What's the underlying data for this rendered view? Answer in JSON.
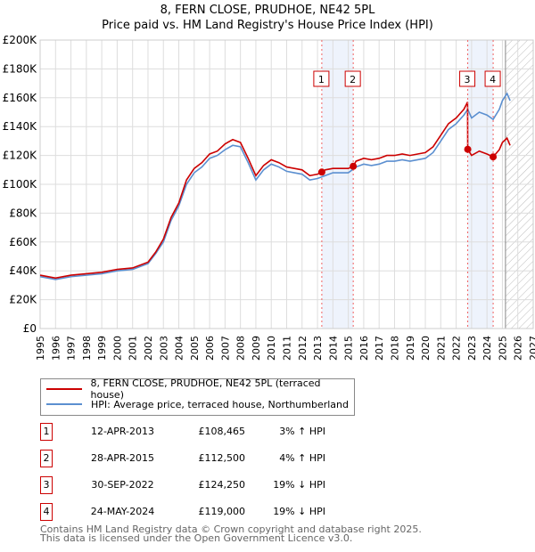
{
  "chart_data": {
    "type": "line",
    "title": "8, FERN CLOSE, PRUDHOE, NE42 5PL",
    "subtitle": "Price paid vs. HM Land Registry's House Price Index (HPI)",
    "xlim": [
      1995,
      2027
    ],
    "ylim": [
      0,
      200000
    ],
    "x_ticks": [
      "1995",
      "1996",
      "1997",
      "1998",
      "1999",
      "2000",
      "2001",
      "2002",
      "2003",
      "2004",
      "2005",
      "2006",
      "2007",
      "2008",
      "2009",
      "2010",
      "2011",
      "2012",
      "2013",
      "2014",
      "2015",
      "2016",
      "2017",
      "2018",
      "2019",
      "2020",
      "2021",
      "2022",
      "2023",
      "2024",
      "2025",
      "2026",
      "2027"
    ],
    "y_ticks": [
      {
        "v": 0,
        "l": "£0"
      },
      {
        "v": 20000,
        "l": "£20K"
      },
      {
        "v": 40000,
        "l": "£40K"
      },
      {
        "v": 60000,
        "l": "£60K"
      },
      {
        "v": 80000,
        "l": "£80K"
      },
      {
        "v": 100000,
        "l": "£100K"
      },
      {
        "v": 120000,
        "l": "£120K"
      },
      {
        "v": 140000,
        "l": "£140K"
      },
      {
        "v": 160000,
        "l": "£160K"
      },
      {
        "v": 180000,
        "l": "£180K"
      },
      {
        "v": 200000,
        "l": "£200K"
      }
    ],
    "grid": true,
    "forecast_start": 2025.2,
    "series": [
      {
        "name": "8, FERN CLOSE, PRUDHOE, NE42 5PL (terraced house)",
        "color": "#cc0000",
        "x": [
          1995,
          1996,
          1997,
          1998,
          1999,
          2000,
          2001,
          2002,
          2002.5,
          2003,
          2003.5,
          2004,
          2004.5,
          2005,
          2005.5,
          2006,
          2006.5,
          2007,
          2007.5,
          2008,
          2008.5,
          2009,
          2009.5,
          2010,
          2010.5,
          2011,
          2011.5,
          2012,
          2012.5,
          2013,
          2013.28,
          2013.5,
          2014,
          2014.5,
          2015,
          2015.32,
          2015.5,
          2016,
          2016.5,
          2017,
          2017.5,
          2018,
          2018.5,
          2019,
          2019.5,
          2020,
          2020.5,
          2021,
          2021.5,
          2022,
          2022.5,
          2022.74,
          2022.75,
          2023,
          2023.5,
          2024,
          2024.4,
          2024.8,
          2025,
          2025.3,
          2025.5
        ],
        "values": [
          37000,
          35000,
          37000,
          38000,
          39000,
          41000,
          42000,
          46000,
          53000,
          62000,
          77000,
          87000,
          103000,
          111000,
          115000,
          121000,
          123000,
          128000,
          131000,
          129000,
          118000,
          106000,
          113000,
          117000,
          115000,
          112000,
          111000,
          110000,
          106000,
          107000,
          108465,
          110000,
          111000,
          111000,
          111000,
          112500,
          116000,
          118000,
          117000,
          118000,
          120000,
          120000,
          121000,
          120000,
          121000,
          122000,
          126000,
          134000,
          142000,
          146000,
          152000,
          157000,
          124250,
          120000,
          123000,
          121000,
          119000,
          124000,
          129000,
          132000,
          127000
        ]
      },
      {
        "name": "HPI: Average price, terraced house, Northumberland",
        "color": "#5b8fd0",
        "x": [
          1995,
          1996,
          1997,
          1998,
          1999,
          2000,
          2001,
          2002,
          2002.5,
          2003,
          2003.5,
          2004,
          2004.5,
          2005,
          2005.5,
          2006,
          2006.5,
          2007,
          2007.5,
          2008,
          2008.5,
          2009,
          2009.5,
          2010,
          2010.5,
          2011,
          2011.5,
          2012,
          2012.5,
          2013,
          2013.5,
          2014,
          2014.5,
          2015,
          2015.5,
          2016,
          2016.5,
          2017,
          2017.5,
          2018,
          2018.5,
          2019,
          2019.5,
          2020,
          2020.5,
          2021,
          2021.5,
          2022,
          2022.5,
          2022.75,
          2023,
          2023.5,
          2024,
          2024.4,
          2024.8,
          2025,
          2025.3,
          2025.5
        ],
        "values": [
          36000,
          34000,
          36000,
          37000,
          38000,
          40000,
          41000,
          45000,
          52000,
          60000,
          75000,
          85000,
          100000,
          108000,
          112000,
          118000,
          120000,
          124000,
          127000,
          126000,
          115000,
          103000,
          110000,
          114000,
          112000,
          109000,
          108000,
          107000,
          103000,
          104000,
          106000,
          108000,
          108000,
          108000,
          112000,
          114000,
          113000,
          114000,
          116000,
          116000,
          117000,
          116000,
          117000,
          118000,
          122000,
          130000,
          138000,
          142000,
          148000,
          152000,
          146000,
          150000,
          148000,
          145000,
          152000,
          158000,
          163000,
          158000
        ]
      }
    ],
    "sales": [
      {
        "label": "1",
        "x": 2013.28,
        "date": "12-APR-2013",
        "price": 108465,
        "price_label": "£108,465",
        "hpi": "3% ↑ HPI"
      },
      {
        "label": "2",
        "x": 2015.32,
        "date": "28-APR-2015",
        "price": 112500,
        "price_label": "£112,500",
        "hpi": "4% ↑ HPI"
      },
      {
        "label": "3",
        "x": 2022.75,
        "date": "30-SEP-2022",
        "price": 124250,
        "price_label": "£124,250",
        "hpi": "19% ↓ HPI"
      },
      {
        "label": "4",
        "x": 2024.4,
        "date": "24-MAY-2024",
        "price": 119000,
        "price_label": "£119,000",
        "hpi": "19% ↓ HPI"
      }
    ]
  },
  "footer": {
    "line1": "Contains HM Land Registry data © Crown copyright and database right 2025.",
    "line2": "This data is licensed under the Open Government Licence v3.0."
  }
}
